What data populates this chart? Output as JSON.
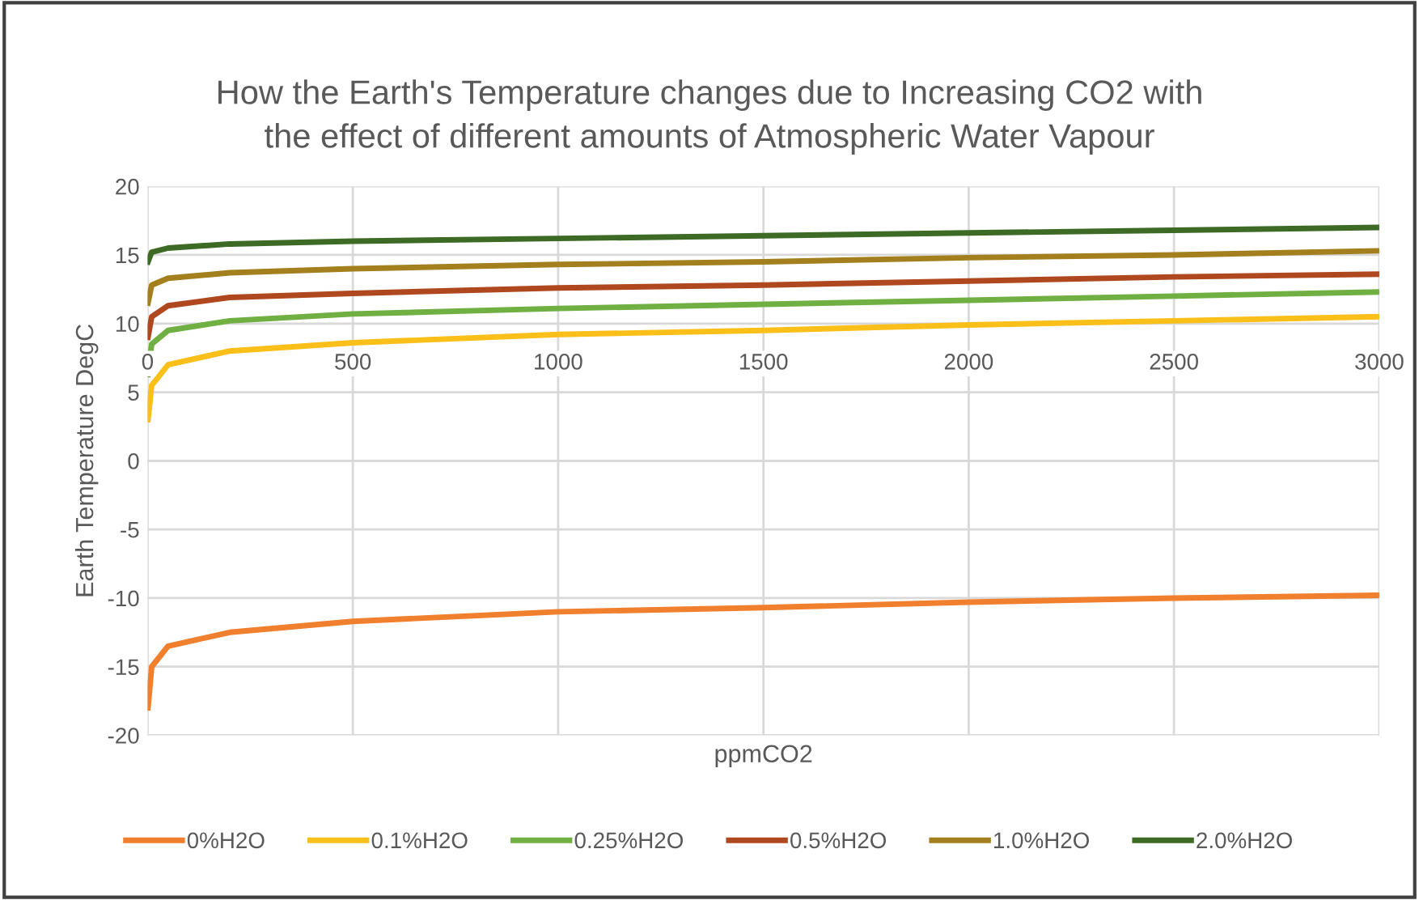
{
  "chart_data": {
    "type": "line",
    "title": "How the Earth's Temperature changes due to Increasing CO2 with\nthe effect of different amounts of Atmospheric Water Vapour",
    "xlabel": "ppmCO2",
    "ylabel": "Earth Temperature DegC",
    "x": [
      1,
      10,
      50,
      200,
      500,
      1000,
      1500,
      2000,
      2500,
      3000
    ],
    "series": [
      {
        "name": "0%H2O",
        "color": "#f07f2e",
        "values": [
          -18,
          -15,
          -13.5,
          -12.5,
          -11.7,
          -11,
          -10.7,
          -10.3,
          -10,
          -9.8
        ]
      },
      {
        "name": "0.1%H2O",
        "color": "#fbbf1a",
        "values": [
          3,
          5.5,
          7,
          8,
          8.6,
          9.2,
          9.5,
          9.9,
          10.2,
          10.5
        ]
      },
      {
        "name": "0.25%H2O",
        "color": "#70b043",
        "values": [
          6.3,
          8.5,
          9.5,
          10.2,
          10.7,
          11.1,
          11.4,
          11.7,
          12.0,
          12.3
        ]
      },
      {
        "name": "0.5%H2O",
        "color": "#b0481f",
        "values": [
          9,
          10.5,
          11.3,
          11.9,
          12.2,
          12.6,
          12.8,
          13.1,
          13.4,
          13.6
        ]
      },
      {
        "name": "1.0%H2O",
        "color": "#a47f1e",
        "values": [
          11.5,
          12.8,
          13.3,
          13.7,
          14,
          14.3,
          14.5,
          14.8,
          15,
          15.3
        ]
      },
      {
        "name": "2.0%H2O",
        "color": "#3d6b25",
        "values": [
          14.5,
          15.2,
          15.5,
          15.8,
          16,
          16.2,
          16.4,
          16.6,
          16.8,
          17
        ]
      }
    ],
    "xlim": [
      0,
      3000
    ],
    "xticks": [
      0,
      500,
      1000,
      1500,
      2000,
      2500,
      3000
    ],
    "ylim": [
      -20,
      20
    ],
    "yticks": [
      -20,
      -15,
      -10,
      -5,
      0,
      5,
      10,
      15,
      20
    ],
    "grid": true,
    "legend": "bottom",
    "marker": "none",
    "line_style": "solid"
  }
}
